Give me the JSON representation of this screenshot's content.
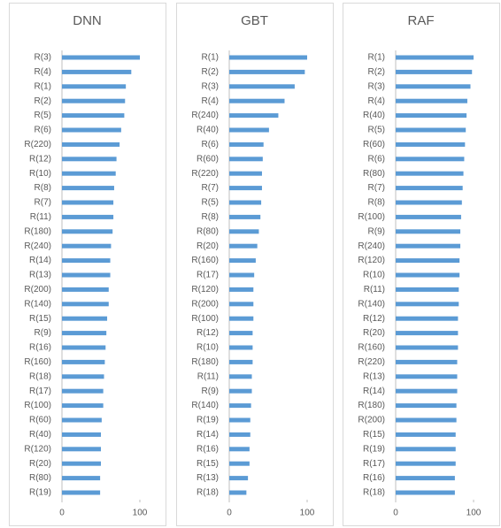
{
  "chart_data": [
    {
      "type": "bar",
      "orientation": "horizontal",
      "title": "DNN",
      "color": "#5b9bd5",
      "xlim": [
        0,
        100
      ],
      "xticks": [
        0,
        100
      ],
      "categories": [
        "R(3)",
        "R(4)",
        "R(1)",
        "R(2)",
        "R(5)",
        "R(6)",
        "R(220)",
        "R(12)",
        "R(10)",
        "R(8)",
        "R(7)",
        "R(11)",
        "R(180)",
        "R(240)",
        "R(14)",
        "R(13)",
        "R(200)",
        "R(140)",
        "R(15)",
        "R(9)",
        "R(16)",
        "R(160)",
        "R(18)",
        "R(17)",
        "R(100)",
        "R(60)",
        "R(40)",
        "R(120)",
        "R(20)",
        "R(80)",
        "R(19)"
      ],
      "values": [
        100,
        89,
        82,
        81,
        80,
        76,
        74,
        70,
        69,
        67,
        66,
        66,
        65,
        63,
        62,
        62,
        60,
        60,
        58,
        57,
        56,
        55,
        54,
        53,
        53,
        51,
        50,
        50,
        50,
        49,
        49
      ]
    },
    {
      "type": "bar",
      "orientation": "horizontal",
      "title": "GBT",
      "color": "#5b9bd5",
      "xlim": [
        0,
        100
      ],
      "xticks": [
        0,
        100
      ],
      "categories": [
        "R(1)",
        "R(2)",
        "R(3)",
        "R(4)",
        "R(240)",
        "R(40)",
        "R(6)",
        "R(60)",
        "R(220)",
        "R(7)",
        "R(5)",
        "R(8)",
        "R(80)",
        "R(20)",
        "R(160)",
        "R(17)",
        "R(120)",
        "R(200)",
        "R(100)",
        "R(12)",
        "R(10)",
        "R(180)",
        "R(11)",
        "R(9)",
        "R(140)",
        "R(19)",
        "R(14)",
        "R(16)",
        "R(15)",
        "R(13)",
        "R(18)"
      ],
      "values": [
        100,
        97,
        84,
        71,
        63,
        51,
        44,
        43,
        42,
        42,
        41,
        40,
        38,
        36,
        34,
        32,
        31,
        31,
        31,
        30,
        30,
        30,
        29,
        29,
        28,
        27,
        27,
        26,
        26,
        24,
        22
      ]
    },
    {
      "type": "bar",
      "orientation": "horizontal",
      "title": "RAF",
      "color": "#5b9bd5",
      "xlim": [
        0,
        100
      ],
      "xticks": [
        0,
        100
      ],
      "categories": [
        "R(1)",
        "R(2)",
        "R(3)",
        "R(4)",
        "R(40)",
        "R(5)",
        "R(60)",
        "R(6)",
        "R(80)",
        "R(7)",
        "R(8)",
        "R(100)",
        "R(9)",
        "R(240)",
        "R(120)",
        "R(10)",
        "R(11)",
        "R(140)",
        "R(12)",
        "R(20)",
        "R(160)",
        "R(220)",
        "R(13)",
        "R(14)",
        "R(180)",
        "R(200)",
        "R(15)",
        "R(19)",
        "R(17)",
        "R(16)",
        "R(18)"
      ],
      "values": [
        100,
        98,
        96,
        92,
        91,
        90,
        89,
        88,
        87,
        86,
        85,
        84,
        83,
        83,
        82,
        82,
        81,
        81,
        80,
        80,
        80,
        79,
        79,
        79,
        78,
        78,
        77,
        77,
        77,
        76,
        76
      ]
    }
  ]
}
